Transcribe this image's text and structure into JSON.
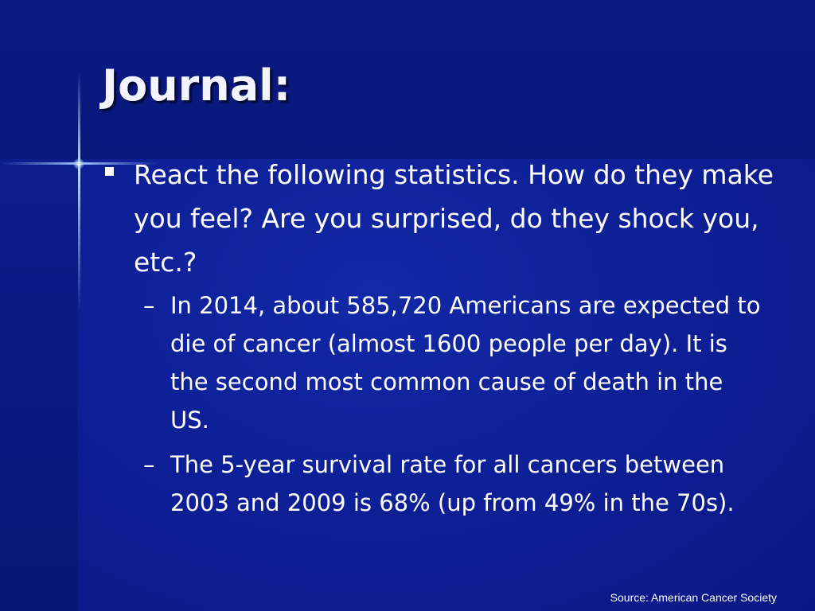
{
  "slide": {
    "title": "Journal:",
    "bullet": "React the following statistics.  How do they make you feel? Are you surprised, do they shock you, etc.?",
    "sub_bullets": [
      "In 2014, about 585,720 Americans are expected to die of cancer (almost 1600 people per day).  It is the second most common cause of death in the US.",
      "The 5-year survival rate for all cancers between 2003 and 2009 is 68% (up from 49% in the 70s)."
    ],
    "dash_symbol": "–",
    "source": "Source: American Cancer Society"
  },
  "colors": {
    "background": "#0c1a8a",
    "text": "#ffffff",
    "sparkle": "#a0c8ff"
  }
}
